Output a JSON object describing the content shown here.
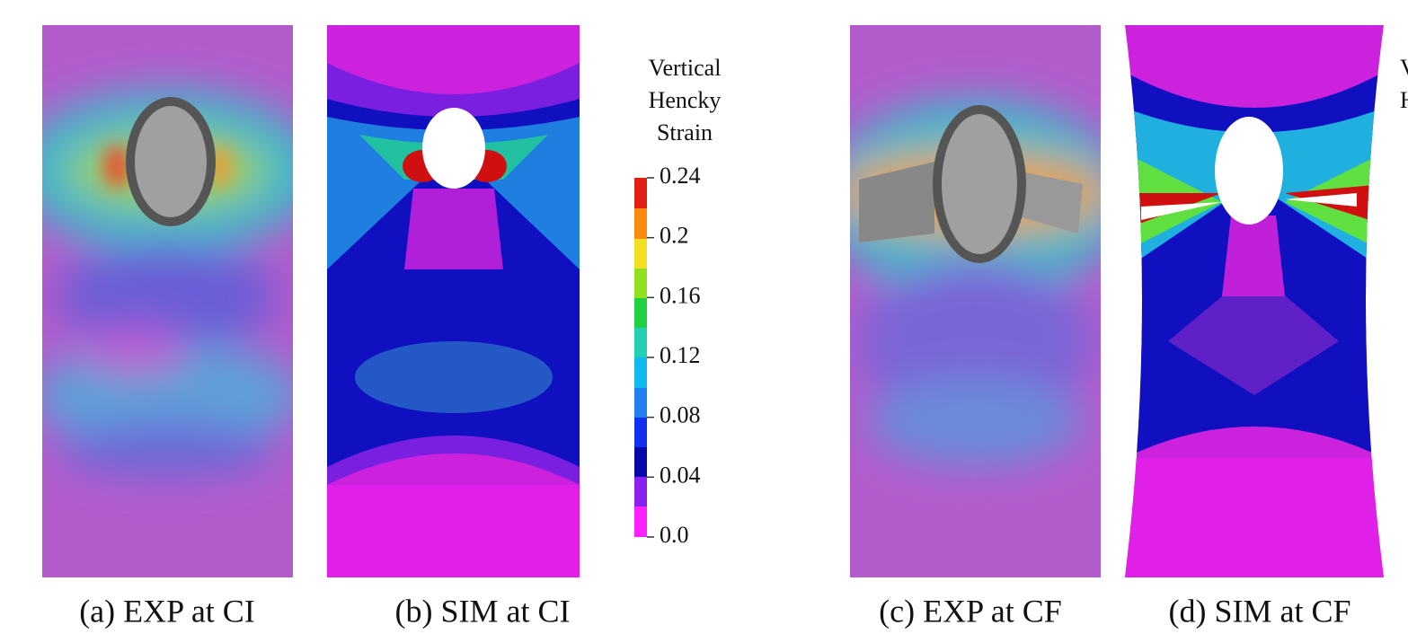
{
  "panels": [
    {
      "caption": "(a) EXP at CI"
    },
    {
      "caption": "(b) SIM at CI"
    },
    {
      "caption": "(c) EXP at CF"
    },
    {
      "caption": "(d) SIM at CF"
    }
  ],
  "colorbar": {
    "title": [
      "Vertical",
      "Hencky",
      "Strain"
    ],
    "ticks": [
      "0.24",
      "0.2",
      "0.16",
      "0.12",
      "0.08",
      "0.04",
      "0.0"
    ]
  }
}
